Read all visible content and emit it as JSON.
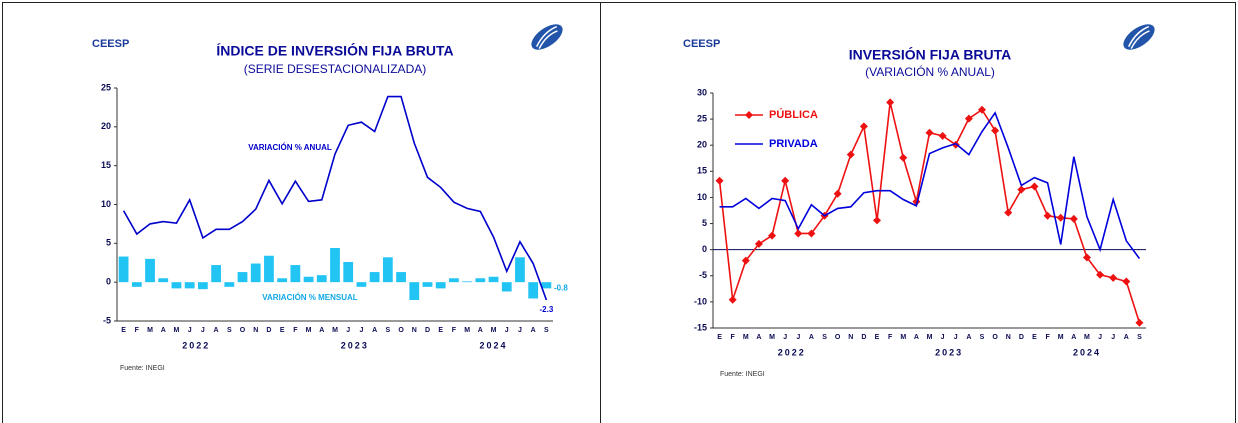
{
  "chart_data": [
    {
      "type": "combo",
      "brand": "CEESP",
      "title": "ÍNDICE DE INVERSIÓN FIJA BRUTA",
      "subtitle": "(SERIE DESESTACIONALIZADA)",
      "source": "Fuente: INEGI",
      "categories": [
        "E",
        "F",
        "M",
        "A",
        "M",
        "J",
        "J",
        "A",
        "S",
        "O",
        "N",
        "D",
        "E",
        "F",
        "M",
        "A",
        "M",
        "J",
        "J",
        "A",
        "S",
        "O",
        "N",
        "D",
        "E",
        "F",
        "M",
        "A",
        "M",
        "J",
        "J",
        "A",
        "S"
      ],
      "x_groups": [
        {
          "label": "2022",
          "count": 12
        },
        {
          "label": "2023",
          "count": 12
        },
        {
          "label": "2024",
          "count": 9
        }
      ],
      "ylim": [
        -5,
        25
      ],
      "yticks": [
        -5,
        0,
        5,
        10,
        15,
        20,
        25
      ],
      "legend": "inline",
      "series": [
        {
          "name": "VARIACIÓN % ANUAL",
          "kind": "line",
          "color": "#0000cc",
          "last_value_label": true,
          "values": [
            9.2,
            6.2,
            7.5,
            7.8,
            7.6,
            10.6,
            5.7,
            6.8,
            6.8,
            7.8,
            9.4,
            13.1,
            10.1,
            13.0,
            10.4,
            10.6,
            16.5,
            20.2,
            20.6,
            19.4,
            23.9,
            23.9,
            17.9,
            13.5,
            12.2,
            10.3,
            9.5,
            9.1,
            5.8,
            1.4,
            5.2,
            2.4,
            -2.3
          ]
        },
        {
          "name": "VARIACIÓN % MENSUAL",
          "kind": "bar",
          "color": "#22c4f4",
          "last_value_label": true,
          "values": [
            3.3,
            -0.6,
            3.0,
            0.5,
            -0.8,
            -0.8,
            -0.9,
            2.2,
            -0.6,
            1.3,
            2.4,
            3.4,
            0.5,
            2.2,
            0.7,
            0.9,
            4.4,
            2.6,
            -0.6,
            1.3,
            3.2,
            1.3,
            -2.3,
            -0.6,
            -0.8,
            0.5,
            0.1,
            0.5,
            0.7,
            -1.2,
            3.2,
            -2.1,
            -0.8
          ]
        }
      ]
    },
    {
      "type": "line",
      "brand": "CEESP",
      "title": "INVERSIÓN FIJA BRUTA",
      "subtitle": "(VARIACIÓN % ANUAL)",
      "source": "Fuente: INEGI",
      "categories": [
        "E",
        "F",
        "M",
        "A",
        "M",
        "J",
        "J",
        "A",
        "S",
        "O",
        "N",
        "D",
        "E",
        "F",
        "M",
        "A",
        "M",
        "J",
        "J",
        "A",
        "S",
        "O",
        "N",
        "D",
        "E",
        "F",
        "M",
        "A",
        "M",
        "J",
        "J",
        "A",
        "S"
      ],
      "x_groups": [
        {
          "label": "2022",
          "count": 12
        },
        {
          "label": "2023",
          "count": 12
        },
        {
          "label": "2024",
          "count": 9
        }
      ],
      "ylim": [
        -15,
        30
      ],
      "yticks": [
        -15,
        -10,
        -5,
        0,
        5,
        10,
        15,
        20,
        25,
        30
      ],
      "legend": "upper left",
      "series": [
        {
          "name": "PÚBLICA",
          "kind": "line",
          "color": "#ee1111",
          "marker": "diamond",
          "values": [
            13.2,
            -9.6,
            -2.1,
            1.1,
            2.7,
            13.2,
            3.1,
            3.1,
            6.5,
            10.7,
            18.2,
            23.6,
            5.6,
            28.2,
            17.6,
            9.2,
            22.4,
            21.8,
            20.1,
            25.1,
            26.8,
            22.8,
            7.1,
            11.5,
            12.1,
            6.5,
            6.1,
            5.9,
            -1.5,
            -4.8,
            -5.4,
            -6.1,
            -14.0
          ]
        },
        {
          "name": "PRIVADA",
          "kind": "line",
          "color": "#0000dd",
          "values": [
            8.2,
            8.2,
            9.8,
            7.9,
            9.8,
            9.4,
            4.0,
            8.6,
            6.5,
            7.9,
            8.2,
            10.9,
            11.3,
            11.3,
            9.6,
            8.4,
            18.4,
            19.5,
            20.3,
            18.2,
            22.6,
            26.2,
            19.5,
            12.3,
            13.8,
            12.8,
            1.0,
            17.8,
            6.3,
            0.0,
            9.6,
            1.7,
            -1.7
          ]
        }
      ]
    }
  ]
}
